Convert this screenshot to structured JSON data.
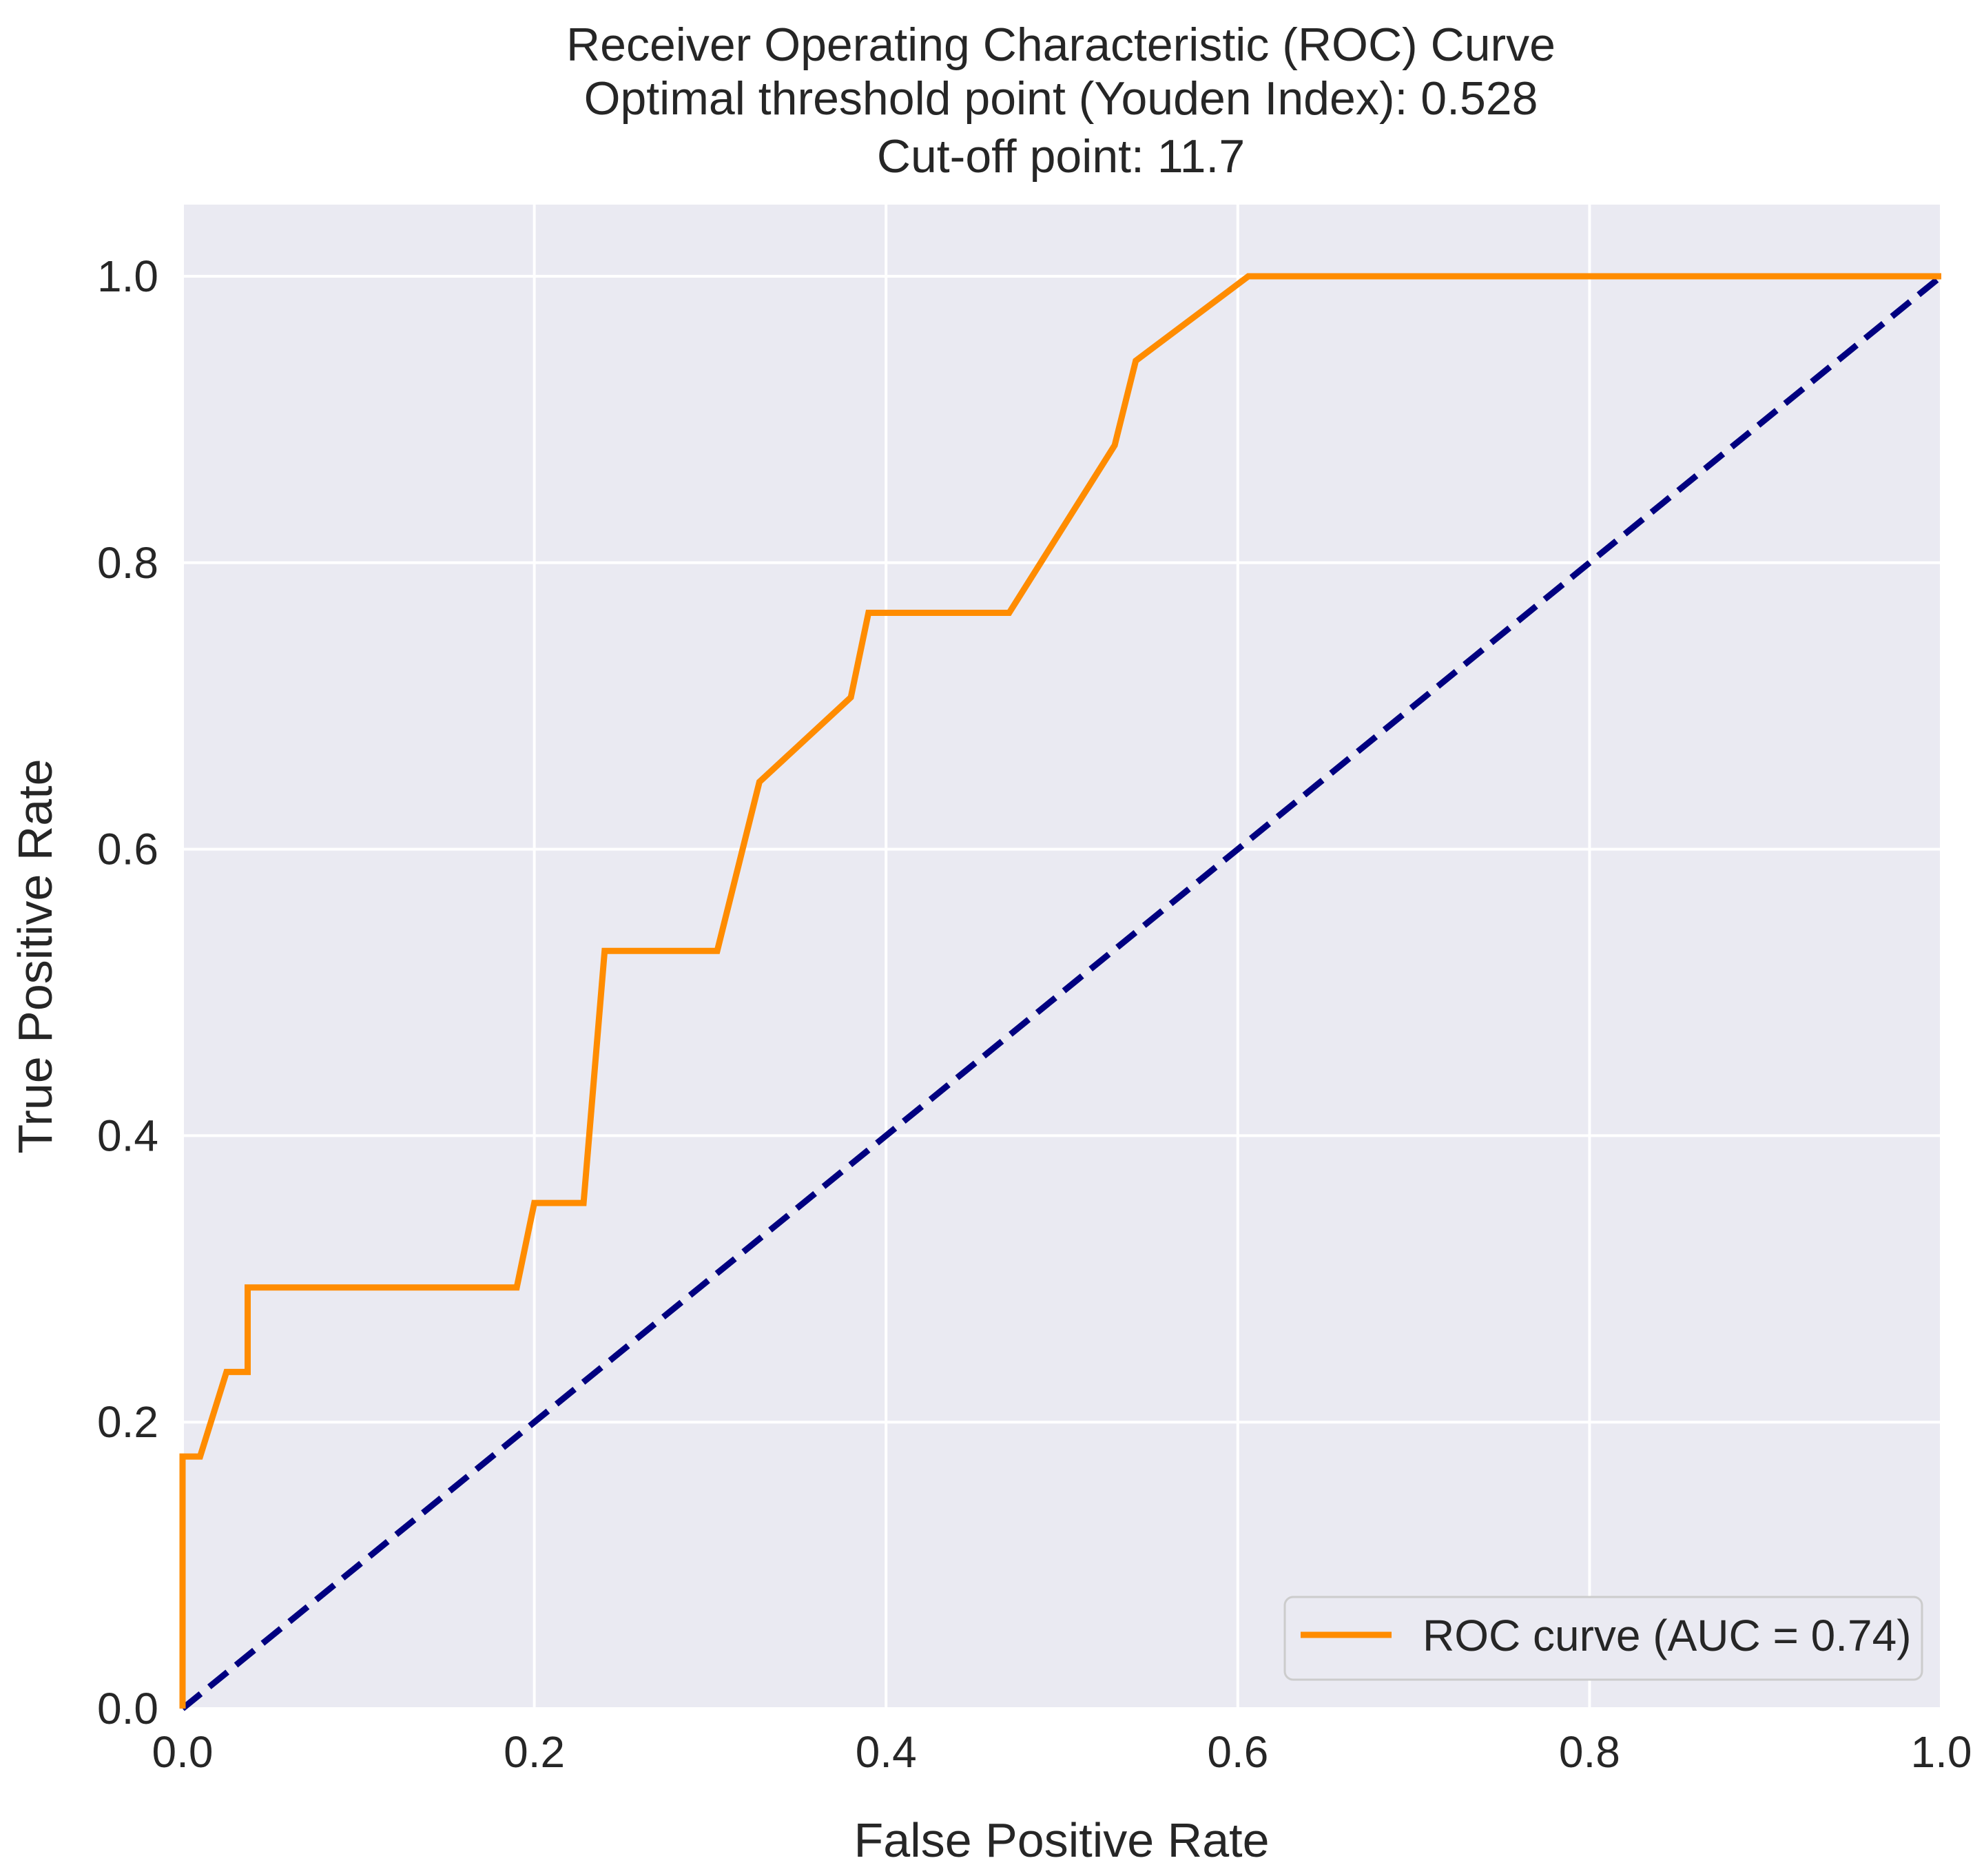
{
  "chart_data": {
    "type": "line",
    "title": "Receiver Operating Characteristic (ROC) Curve",
    "subtitle_lines": [
      "Optimal threshold point (Youden Index): 0.528",
      "Cut-off point: 11.7"
    ],
    "xlabel": "False Positive Rate",
    "ylabel": "True Positive Rate",
    "xlim": [
      0,
      1
    ],
    "ylim": [
      0,
      1.05
    ],
    "x_ticks": [
      "0.0",
      "0.2",
      "0.4",
      "0.6",
      "0.8",
      "1.0"
    ],
    "y_ticks": [
      "0.0",
      "0.2",
      "0.4",
      "0.6",
      "0.8",
      "1.0"
    ],
    "grid": true,
    "background_color": "#eaeaf2",
    "legend_position": "lower-right",
    "series": [
      {
        "name": "ROC curve (AUC = 0.74)",
        "color": "#ff8c00",
        "style": "solid",
        "x": [
          0.0,
          0.0,
          0.01,
          0.025,
          0.037,
          0.037,
          0.19,
          0.2,
          0.228,
          0.24,
          0.304,
          0.328,
          0.38,
          0.39,
          0.47,
          0.53,
          0.542,
          0.606,
          1.0
        ],
        "y": [
          0.0,
          0.176,
          0.176,
          0.235,
          0.235,
          0.294,
          0.294,
          0.353,
          0.353,
          0.529,
          0.529,
          0.647,
          0.706,
          0.765,
          0.765,
          0.882,
          0.941,
          1.0,
          1.0
        ]
      },
      {
        "color": "#000080",
        "style": "dashed",
        "x": [
          0.0,
          1.0
        ],
        "y": [
          0.0,
          1.0
        ]
      }
    ]
  }
}
